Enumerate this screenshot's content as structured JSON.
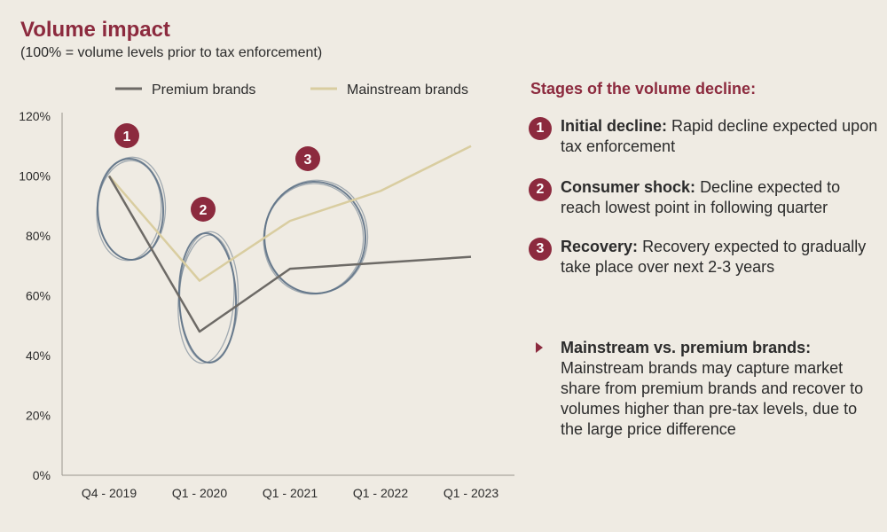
{
  "header": {
    "title": "Volume impact",
    "subtitle": "(100% = volume levels prior to tax enforcement)"
  },
  "colors": {
    "accent": "#8c2a3e",
    "premium": "#6d6a66",
    "mainstream": "#d9cda0",
    "circle": "#5e7286"
  },
  "chart_data": {
    "type": "line",
    "categories": [
      "Q4 - 2019",
      "Q1 - 2020",
      "Q1 - 2021",
      "Q1 - 2022",
      "Q1 - 2023"
    ],
    "x": [
      0,
      1,
      2,
      3,
      4
    ],
    "ylim": [
      0,
      120
    ],
    "yticks": [
      "0%",
      "20%",
      "40%",
      "60%",
      "80%",
      "100%",
      "120%"
    ],
    "legend_position": "top",
    "series": [
      {
        "name": "Premium brands",
        "x": [
          0,
          1,
          2,
          3,
          4
        ],
        "values": [
          100,
          48,
          69,
          71,
          73
        ]
      },
      {
        "name": "Mainstream brands",
        "x": [
          0,
          1,
          2,
          3,
          4
        ],
        "values": [
          100,
          65,
          85,
          95,
          110
        ]
      }
    ],
    "annotations": [
      {
        "label": "1"
      },
      {
        "label": "2"
      },
      {
        "label": "3"
      }
    ]
  },
  "stages": {
    "title": "Stages of the volume decline:",
    "items": [
      {
        "num": "1",
        "head": "Initial decline:",
        "text": "Rapid decline expected upon tax enforcement"
      },
      {
        "num": "2",
        "head": "Consumer shock:",
        "text": "Decline expected to reach lowest point in following quarter"
      },
      {
        "num": "3",
        "head": "Recovery:",
        "text": "Recovery expected to gradually take place over next 2-3 years"
      }
    ]
  },
  "note": {
    "head": "Mainstream vs. premium brands:",
    "text": "Mainstream brands may capture market share from premium brands and recover to volumes higher than pre-tax levels, due to the large price difference"
  }
}
